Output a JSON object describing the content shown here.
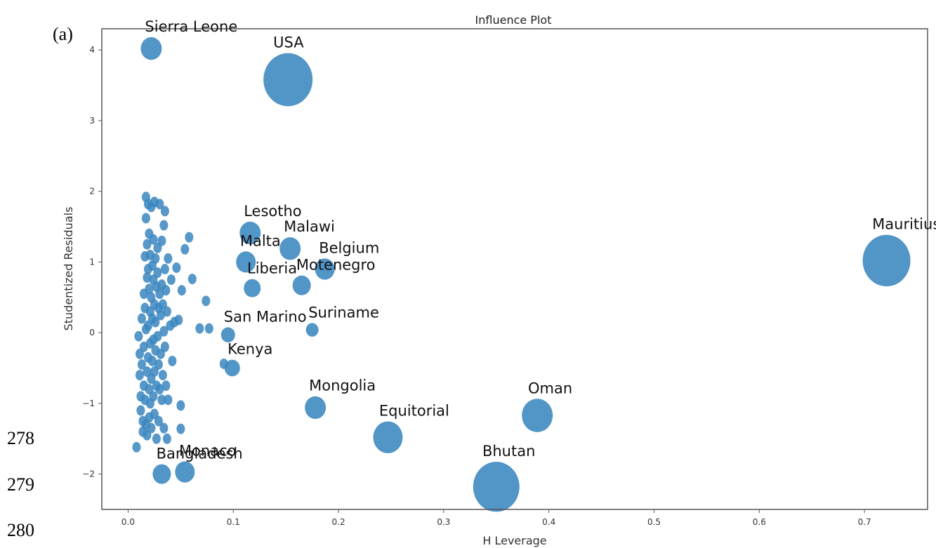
{
  "margin": {
    "panel_label": "(a)",
    "line_numbers": [
      "278",
      "279",
      "280"
    ]
  },
  "colors": {
    "point": "#3a86bf",
    "frame": "#555555",
    "text": "#333333"
  },
  "chart_data": {
    "type": "scatter",
    "title": "Influence Plot",
    "xlabel": "H Leverage",
    "ylabel": "Studentized Residuals",
    "xlim": [
      -0.025,
      0.76
    ],
    "ylim": [
      -2.5,
      4.3
    ],
    "xticks": [
      0.0,
      0.1,
      0.2,
      0.3,
      0.4,
      0.5,
      0.6,
      0.7
    ],
    "xtick_labels": [
      "0.0",
      "0.1",
      "0.2",
      "0.3",
      "0.4",
      "0.5",
      "0.6",
      "0.7"
    ],
    "yticks": [
      -2,
      -1,
      0,
      1,
      2,
      3,
      4
    ],
    "ytick_labels": [
      "−2",
      "−1",
      "0",
      "1",
      "2",
      "3",
      "4"
    ],
    "grid": false,
    "note": "marker size proportional to influence (Cook's distance)",
    "labeled_points": [
      {
        "label": "Sierra Leone",
        "x": 0.022,
        "y": 4.02,
        "size": 1.0
      },
      {
        "label": "USA",
        "x": 0.152,
        "y": 3.58,
        "size": 3.0
      },
      {
        "label": "Lesotho",
        "x": 0.116,
        "y": 1.41,
        "size": 1.0
      },
      {
        "label": "Malawi",
        "x": 0.154,
        "y": 1.19,
        "size": 1.0
      },
      {
        "label": "Malta",
        "x": 0.112,
        "y": 1.0,
        "size": 0.9
      },
      {
        "label": "Belgium",
        "x": 0.187,
        "y": 0.9,
        "size": 0.9
      },
      {
        "label": "Liberia",
        "x": 0.118,
        "y": 0.63,
        "size": 0.7
      },
      {
        "label": "Motenegro",
        "x": 0.165,
        "y": 0.67,
        "size": 0.8
      },
      {
        "label": "San Marino",
        "x": 0.095,
        "y": -0.03,
        "size": 0.5
      },
      {
        "label": "Suriname",
        "x": 0.175,
        "y": 0.04,
        "size": 0.4
      },
      {
        "label": "Kenya",
        "x": 0.099,
        "y": -0.5,
        "size": 0.6
      },
      {
        "label": "Mongolia",
        "x": 0.178,
        "y": -1.06,
        "size": 1.0
      },
      {
        "label": "Equitorial",
        "x": 0.247,
        "y": -1.48,
        "size": 1.6
      },
      {
        "label": "Oman",
        "x": 0.389,
        "y": -1.17,
        "size": 1.7
      },
      {
        "label": "Bhutan",
        "x": 0.35,
        "y": -2.18,
        "size": 2.8
      },
      {
        "label": "Mauritius",
        "x": 0.721,
        "y": 1.02,
        "size": 2.9
      },
      {
        "label": "Monaco",
        "x": 0.054,
        "y": -1.97,
        "size": 0.9
      },
      {
        "label": "Bangladesh",
        "x": 0.032,
        "y": -2.0,
        "size": 0.8
      }
    ],
    "points": [
      [
        0.008,
        -1.62
      ],
      [
        0.01,
        -0.05
      ],
      [
        0.011,
        -0.3
      ],
      [
        0.011,
        -0.6
      ],
      [
        0.012,
        -0.9
      ],
      [
        0.012,
        -1.1
      ],
      [
        0.013,
        0.2
      ],
      [
        0.013,
        -0.45
      ],
      [
        0.014,
        -1.25
      ],
      [
        0.014,
        -1.4
      ],
      [
        0.015,
        0.55
      ],
      [
        0.015,
        -0.2
      ],
      [
        0.015,
        -0.75
      ],
      [
        0.016,
        1.08
      ],
      [
        0.016,
        0.35
      ],
      [
        0.016,
        -0.95
      ],
      [
        0.017,
        1.92
      ],
      [
        0.017,
        1.62
      ],
      [
        0.017,
        0.05
      ],
      [
        0.017,
        -1.3
      ],
      [
        0.018,
        1.25
      ],
      [
        0.018,
        0.78
      ],
      [
        0.018,
        -0.55
      ],
      [
        0.018,
        -1.45
      ],
      [
        0.019,
        1.82
      ],
      [
        0.019,
        0.9
      ],
      [
        0.019,
        0.1
      ],
      [
        0.019,
        -0.35
      ],
      [
        0.02,
        1.4
      ],
      [
        0.02,
        0.62
      ],
      [
        0.02,
        -0.8
      ],
      [
        0.02,
        -1.2
      ],
      [
        0.021,
        1.1
      ],
      [
        0.021,
        0.3
      ],
      [
        0.021,
        -0.15
      ],
      [
        0.021,
        -1.0
      ],
      [
        0.022,
        1.78
      ],
      [
        0.022,
        0.5
      ],
      [
        0.022,
        -0.65
      ],
      [
        0.022,
        -1.35
      ],
      [
        0.023,
        0.95
      ],
      [
        0.023,
        0.2
      ],
      [
        0.023,
        -0.4
      ],
      [
        0.024,
        1.32
      ],
      [
        0.024,
        0.75
      ],
      [
        0.024,
        -0.1
      ],
      [
        0.024,
        -0.9
      ],
      [
        0.025,
        1.85
      ],
      [
        0.025,
        0.4
      ],
      [
        0.025,
        -0.55
      ],
      [
        0.025,
        -1.15
      ],
      [
        0.026,
        1.05
      ],
      [
        0.026,
        0.15
      ],
      [
        0.026,
        -0.25
      ],
      [
        0.027,
        0.65
      ],
      [
        0.027,
        -0.75
      ],
      [
        0.027,
        -1.5
      ],
      [
        0.028,
        1.2
      ],
      [
        0.028,
        0.85
      ],
      [
        0.028,
        -0.05
      ],
      [
        0.029,
        0.35
      ],
      [
        0.029,
        -0.45
      ],
      [
        0.029,
        -1.25
      ],
      [
        0.03,
        1.82
      ],
      [
        0.03,
        0.55
      ],
      [
        0.03,
        -0.8
      ],
      [
        0.031,
        0.25
      ],
      [
        0.031,
        -0.3
      ],
      [
        0.032,
        1.3
      ],
      [
        0.032,
        0.68
      ],
      [
        0.032,
        -0.95
      ],
      [
        0.033,
        0.4
      ],
      [
        0.033,
        -0.6
      ],
      [
        0.034,
        1.52
      ],
      [
        0.034,
        0.02
      ],
      [
        0.034,
        -1.35
      ],
      [
        0.035,
        1.72
      ],
      [
        0.035,
        0.9
      ],
      [
        0.035,
        -0.2
      ],
      [
        0.036,
        0.6
      ],
      [
        0.036,
        -0.75
      ],
      [
        0.037,
        0.3
      ],
      [
        0.037,
        -1.5
      ],
      [
        0.038,
        1.05
      ],
      [
        0.038,
        -0.95
      ],
      [
        0.04,
        0.1
      ],
      [
        0.041,
        0.75
      ],
      [
        0.042,
        -0.4
      ],
      [
        0.044,
        0.15
      ],
      [
        0.046,
        0.92
      ],
      [
        0.048,
        0.18
      ],
      [
        0.05,
        -1.03
      ],
      [
        0.05,
        -1.36
      ],
      [
        0.051,
        0.6
      ],
      [
        0.054,
        1.18
      ],
      [
        0.058,
        1.35
      ],
      [
        0.061,
        0.76
      ],
      [
        0.068,
        0.06
      ],
      [
        0.074,
        0.45
      ],
      [
        0.077,
        0.06
      ],
      [
        0.091,
        -0.44
      ]
    ]
  }
}
